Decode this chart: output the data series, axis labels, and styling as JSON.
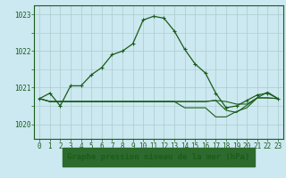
{
  "title": "Graphe pression niveau de la mer (hPa)",
  "background_color": "#cce8f0",
  "plot_bg_color": "#cce8f0",
  "grid_color": "#aacccc",
  "line_color": "#1a5c1a",
  "marker_color": "#1a5c1a",
  "xlim": [
    -0.5,
    23.5
  ],
  "ylim": [
    1019.6,
    1023.25
  ],
  "yticks": [
    1020,
    1021,
    1022,
    1023
  ],
  "xticks": [
    0,
    1,
    2,
    3,
    4,
    5,
    6,
    7,
    8,
    9,
    10,
    11,
    12,
    13,
    14,
    15,
    16,
    17,
    18,
    19,
    20,
    21,
    22,
    23
  ],
  "series_main": [
    1020.7,
    1020.85,
    1020.5,
    1021.05,
    1021.05,
    1021.35,
    1021.55,
    1021.9,
    1022.0,
    1022.2,
    1022.85,
    1022.95,
    1022.9,
    1022.55,
    1022.05,
    1021.65,
    1021.4,
    1020.85,
    1020.45,
    1020.5,
    1020.65,
    1020.8,
    1020.85,
    1020.7
  ],
  "series_flat1": [
    1020.7,
    1020.62,
    1020.62,
    1020.62,
    1020.62,
    1020.62,
    1020.62,
    1020.62,
    1020.62,
    1020.62,
    1020.62,
    1020.62,
    1020.62,
    1020.62,
    1020.62,
    1020.62,
    1020.62,
    1020.65,
    1020.62,
    1020.55,
    1020.55,
    1020.72,
    1020.72,
    1020.7
  ],
  "series_flat2": [
    1020.7,
    1020.62,
    1020.62,
    1020.62,
    1020.62,
    1020.62,
    1020.62,
    1020.62,
    1020.62,
    1020.62,
    1020.62,
    1020.62,
    1020.62,
    1020.62,
    1020.45,
    1020.45,
    1020.45,
    1020.2,
    1020.2,
    1020.35,
    1020.45,
    1020.72,
    1020.88,
    1020.7
  ],
  "series_flat3": [
    1020.7,
    1020.62,
    1020.62,
    1020.62,
    1020.62,
    1020.62,
    1020.62,
    1020.62,
    1020.62,
    1020.62,
    1020.62,
    1020.62,
    1020.62,
    1020.62,
    1020.62,
    1020.62,
    1020.62,
    1020.65,
    1020.38,
    1020.32,
    1020.52,
    1020.72,
    1020.72,
    1020.7
  ],
  "tick_fontsize": 5.5,
  "title_fontsize": 6.5
}
